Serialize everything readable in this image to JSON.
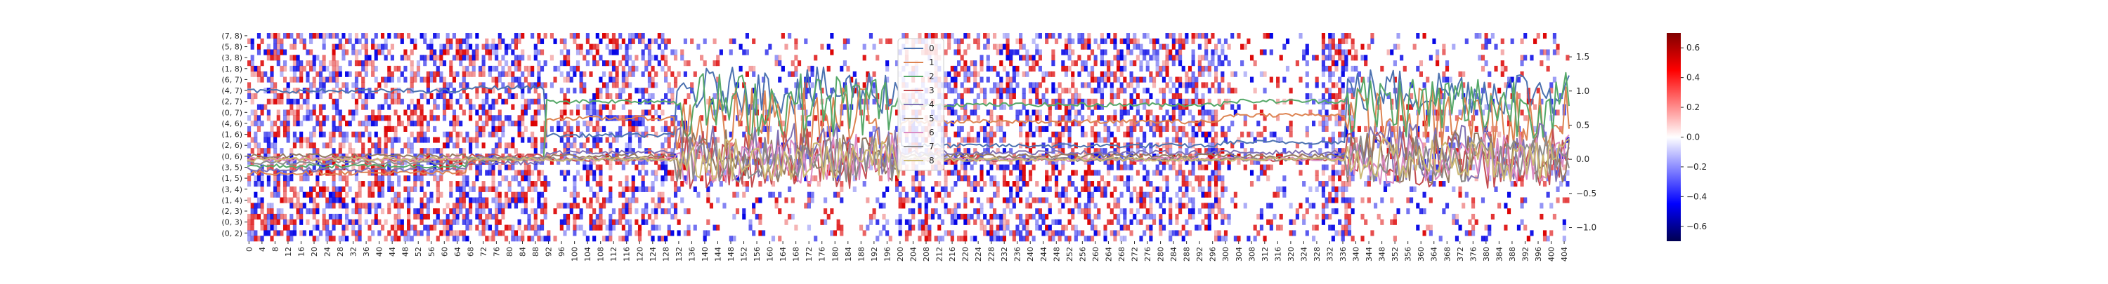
{
  "chart_data": [
    {
      "type": "heatmap",
      "title": "",
      "xlabel": "",
      "ylabel": "",
      "x_tick_labels": [
        "0",
        "4",
        "8",
        "12",
        "16",
        "20",
        "24",
        "28",
        "32",
        "36",
        "40",
        "44",
        "48",
        "52",
        "56",
        "60",
        "64",
        "68",
        "72",
        "76",
        "80",
        "84",
        "88",
        "92",
        "96",
        "100",
        "104",
        "108",
        "112",
        "116",
        "120",
        "124",
        "128",
        "132",
        "136",
        "140",
        "144",
        "148",
        "152",
        "156",
        "160",
        "164",
        "168",
        "172",
        "176",
        "180",
        "184",
        "188",
        "192",
        "196",
        "200",
        "204",
        "208",
        "212",
        "216",
        "220",
        "224",
        "228",
        "232",
        "236",
        "240",
        "244",
        "248",
        "252",
        "256",
        "260",
        "264",
        "268",
        "272",
        "276",
        "280",
        "284",
        "288",
        "292",
        "296",
        "300",
        "304",
        "308",
        "312",
        "316",
        "320",
        "324",
        "328",
        "332",
        "336",
        "340",
        "344",
        "348",
        "352",
        "356",
        "360",
        "364",
        "368",
        "372",
        "376",
        "380",
        "384",
        "388",
        "392",
        "396",
        "400",
        "404"
      ],
      "x_range": [
        0,
        406
      ],
      "y_tick_labels": [
        "(7, 8)",
        "(5, 8)",
        "(3, 8)",
        "(1, 8)",
        "(6, 7)",
        "(4, 7)",
        "(2, 7)",
        "(0, 7)",
        "(4, 6)",
        "(1, 6)",
        "(2, 6)",
        "(0, 6)",
        "(3, 5)",
        "(1, 5)",
        "(3, 4)",
        "(1, 4)",
        "(2, 3)",
        "(0, 3)",
        "(0, 2)"
      ],
      "colorbar": {
        "min": -0.7,
        "max": 0.7,
        "ticks": [
          "0.6",
          "0.4",
          "0.2",
          "0.0",
          "−0.2",
          "−0.4",
          "−0.6"
        ],
        "colormap": "seismic"
      },
      "cells_description": "sparse red/blue cells; dense columns 0–92, 100–135, 200–300, 330–340"
    },
    {
      "type": "line",
      "x_range": [
        0,
        406
      ],
      "ylim": [
        -1.2,
        1.85
      ],
      "y_ticks": [
        "1.5",
        "1.0",
        "0.5",
        "0.0",
        "−0.5",
        "−1.0"
      ],
      "legend": {
        "placement": "upper-center"
      },
      "series": [
        {
          "name": "0",
          "color": "#4c72b0",
          "segments": [
            [
              0,
              1.0
            ],
            [
              68,
              1.05
            ],
            [
              92,
              0.35
            ],
            [
              132,
              0.2
            ],
            [
              300,
              0.25
            ],
            [
              338,
              0.2
            ],
            [
              406,
              0.2
            ]
          ]
        },
        {
          "name": "1",
          "color": "#dd8452",
          "segments": [
            [
              0,
              -0.2
            ],
            [
              68,
              0.0
            ],
            [
              92,
              0.6
            ],
            [
              132,
              0.55
            ],
            [
              300,
              0.65
            ],
            [
              338,
              0.55
            ],
            [
              406,
              0.6
            ]
          ]
        },
        {
          "name": "2",
          "color": "#55a868",
          "segments": [
            [
              0,
              -0.1
            ],
            [
              68,
              0.0
            ],
            [
              92,
              0.85
            ],
            [
              132,
              0.8
            ],
            [
              300,
              0.85
            ],
            [
              338,
              0.8
            ],
            [
              406,
              0.8
            ]
          ]
        },
        {
          "name": "3",
          "color": "#c44e52",
          "segments": [
            [
              0,
              0.0
            ],
            [
              68,
              0.05
            ],
            [
              92,
              0.0
            ],
            [
              132,
              0.0
            ],
            [
              300,
              0.0
            ],
            [
              406,
              0.0
            ]
          ]
        },
        {
          "name": "4",
          "color": "#8172b3",
          "segments": [
            [
              0,
              -0.15
            ],
            [
              68,
              -0.05
            ],
            [
              92,
              0.1
            ],
            [
              132,
              0.1
            ],
            [
              300,
              0.1
            ],
            [
              406,
              0.1
            ]
          ]
        },
        {
          "name": "5",
          "color": "#937860",
          "segments": [
            [
              0,
              0.05
            ],
            [
              68,
              0.0
            ],
            [
              92,
              0.05
            ],
            [
              132,
              0.05
            ],
            [
              300,
              0.05
            ],
            [
              406,
              0.05
            ]
          ]
        },
        {
          "name": "6",
          "color": "#da8bc3",
          "segments": [
            [
              0,
              0.0
            ],
            [
              68,
              0.0
            ],
            [
              92,
              0.0
            ],
            [
              132,
              0.0
            ],
            [
              300,
              0.0
            ],
            [
              406,
              0.0
            ]
          ]
        },
        {
          "name": "7",
          "color": "#8c8c8c",
          "segments": [
            [
              0,
              -0.05
            ],
            [
              68,
              0.02
            ],
            [
              92,
              0.0
            ],
            [
              132,
              0.0
            ],
            [
              300,
              0.0
            ],
            [
              406,
              0.0
            ]
          ]
        },
        {
          "name": "8",
          "color": "#ccb974",
          "segments": [
            [
              0,
              0.0
            ],
            [
              68,
              0.0
            ],
            [
              92,
              0.0
            ],
            [
              132,
              0.0
            ],
            [
              300,
              0.0
            ],
            [
              406,
              0.0
            ]
          ]
        }
      ]
    }
  ]
}
